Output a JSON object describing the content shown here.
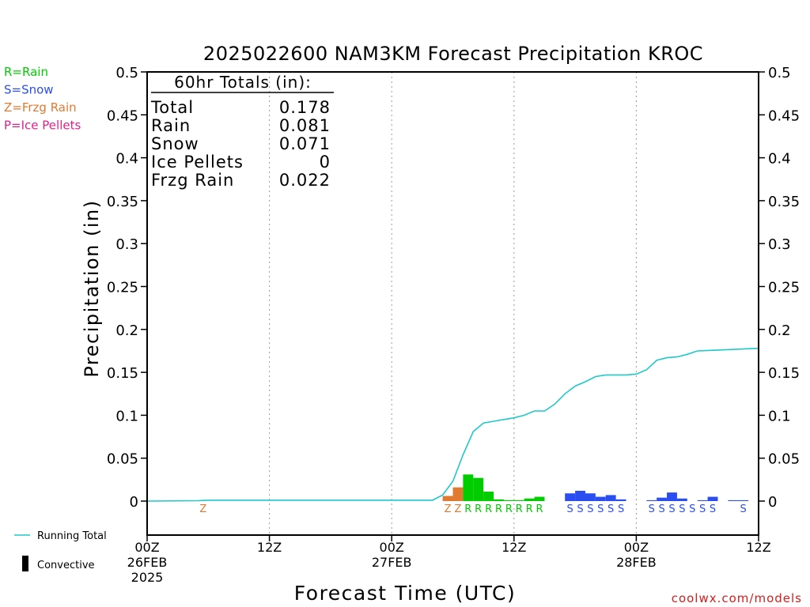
{
  "chart_data": {
    "type": "bar",
    "title": "2025022600 NAM3KM Forecast Precipitation KROC",
    "xlabel": "Forecast Time (UTC)",
    "ylabel": "Precipitation (in)",
    "ylim": [
      -0.04,
      0.5
    ],
    "xlim_hours": [
      0,
      60
    ],
    "yticks": [
      "0",
      "0.05",
      "0.1",
      "0.15",
      "0.2",
      "0.25",
      "0.3",
      "0.35",
      "0.4",
      "0.45",
      "0.5"
    ],
    "yticks_values": [
      0,
      0.05,
      0.1,
      0.15,
      0.2,
      0.25,
      0.3,
      0.35,
      0.4,
      0.45,
      0.5
    ],
    "xticks": [
      {
        "hour": 0,
        "line1": "00Z",
        "line2": "26FEB",
        "line3": "2025"
      },
      {
        "hour": 12,
        "line1": "12Z",
        "line2": "",
        "line3": ""
      },
      {
        "hour": 24,
        "line1": "00Z",
        "line2": "27FEB",
        "line3": ""
      },
      {
        "hour": 36,
        "line1": "12Z",
        "line2": "",
        "line3": ""
      },
      {
        "hour": 48,
        "line1": "00Z",
        "line2": "28FEB",
        "line3": ""
      },
      {
        "hour": 60,
        "line1": "12Z",
        "line2": "",
        "line3": ""
      }
    ],
    "grid_vertical": "dotted",
    "legend": [
      {
        "label": "R=Rain",
        "color": "#00cc00"
      },
      {
        "label": "S=Snow",
        "color": "#2a4ef0"
      },
      {
        "label": "Z=Frzg Rain",
        "color": "#e07a30"
      },
      {
        "label": "P=Ice Pellets",
        "color": "#e0208a"
      }
    ],
    "bottom_legend": [
      {
        "label": "Running Total",
        "color": "#20c8c8"
      },
      {
        "label": "Convective",
        "color": "#000000"
      }
    ],
    "totals_box": {
      "heading": "60hr Totals (in):",
      "rows": [
        {
          "label": "Total",
          "value": "0.178"
        },
        {
          "label": "Rain",
          "value": "0.081"
        },
        {
          "label": "Snow",
          "value": "0.071"
        },
        {
          "label": "Ice Pellets",
          "value": "0"
        },
        {
          "label": "Frzg Rain",
          "value": "0.022"
        }
      ]
    },
    "bars": [
      {
        "hour": 29,
        "value": 0.006,
        "type": "Z"
      },
      {
        "hour": 30,
        "value": 0.016,
        "type": "Z"
      },
      {
        "hour": 31,
        "value": 0.031,
        "type": "R"
      },
      {
        "hour": 32,
        "value": 0.027,
        "type": "R"
      },
      {
        "hour": 33,
        "value": 0.011,
        "type": "R"
      },
      {
        "hour": 34,
        "value": 0.002,
        "type": "R"
      },
      {
        "hour": 35,
        "value": 0.001,
        "type": "R"
      },
      {
        "hour": 36,
        "value": 0.001,
        "type": "R"
      },
      {
        "hour": 37,
        "value": 0.003,
        "type": "R"
      },
      {
        "hour": 38,
        "value": 0.005,
        "type": "R"
      },
      {
        "hour": 41,
        "value": 0.009,
        "type": "S"
      },
      {
        "hour": 42,
        "value": 0.012,
        "type": "S"
      },
      {
        "hour": 43,
        "value": 0.009,
        "type": "S"
      },
      {
        "hour": 44,
        "value": 0.005,
        "type": "S"
      },
      {
        "hour": 45,
        "value": 0.007,
        "type": "S"
      },
      {
        "hour": 46,
        "value": 0.002,
        "type": "S"
      },
      {
        "hour": 49,
        "value": 0.001,
        "type": "S"
      },
      {
        "hour": 50,
        "value": 0.004,
        "type": "S"
      },
      {
        "hour": 51,
        "value": 0.01,
        "type": "S"
      },
      {
        "hour": 52,
        "value": 0.003,
        "type": "S"
      },
      {
        "hour": 54,
        "value": 0.001,
        "type": "S"
      },
      {
        "hour": 55,
        "value": 0.005,
        "type": "S"
      },
      {
        "hour": 57,
        "value": 0.001,
        "type": "S"
      },
      {
        "hour": 58,
        "value": 0.001,
        "type": "S"
      }
    ],
    "ptype_markers": [
      {
        "hour": 5.5,
        "letter": "Z"
      },
      {
        "hour": 29.5,
        "letter": "Z"
      },
      {
        "hour": 30.5,
        "letter": "Z"
      },
      {
        "hour": 31.5,
        "letter": "R"
      },
      {
        "hour": 32.5,
        "letter": "R"
      },
      {
        "hour": 33.5,
        "letter": "R"
      },
      {
        "hour": 34.5,
        "letter": "R"
      },
      {
        "hour": 35.5,
        "letter": "R"
      },
      {
        "hour": 36.5,
        "letter": "R"
      },
      {
        "hour": 37.5,
        "letter": "R"
      },
      {
        "hour": 38.5,
        "letter": "R"
      },
      {
        "hour": 41.5,
        "letter": "S"
      },
      {
        "hour": 42.5,
        "letter": "S"
      },
      {
        "hour": 43.5,
        "letter": "S"
      },
      {
        "hour": 44.5,
        "letter": "S"
      },
      {
        "hour": 45.5,
        "letter": "S"
      },
      {
        "hour": 46.5,
        "letter": "S"
      },
      {
        "hour": 49.5,
        "letter": "S"
      },
      {
        "hour": 50.5,
        "letter": "S"
      },
      {
        "hour": 51.5,
        "letter": "S"
      },
      {
        "hour": 52.5,
        "letter": "S"
      },
      {
        "hour": 53.5,
        "letter": "S"
      },
      {
        "hour": 54.5,
        "letter": "S"
      },
      {
        "hour": 55.5,
        "letter": "S"
      },
      {
        "hour": 58.5,
        "letter": "S"
      }
    ],
    "running_total": [
      [
        0,
        0
      ],
      [
        5,
        0.0005
      ],
      [
        6,
        0.001
      ],
      [
        28,
        0.001
      ],
      [
        29,
        0.007
      ],
      [
        30,
        0.023
      ],
      [
        31,
        0.054
      ],
      [
        32,
        0.081
      ],
      [
        33,
        0.091
      ],
      [
        34,
        0.093
      ],
      [
        35,
        0.095
      ],
      [
        36,
        0.097
      ],
      [
        37,
        0.1
      ],
      [
        38,
        0.105
      ],
      [
        39,
        0.105
      ],
      [
        40,
        0.113
      ],
      [
        41,
        0.125
      ],
      [
        42,
        0.134
      ],
      [
        43,
        0.139
      ],
      [
        44,
        0.145
      ],
      [
        45,
        0.147
      ],
      [
        46,
        0.147
      ],
      [
        47,
        0.147
      ],
      [
        48,
        0.148
      ],
      [
        49,
        0.153
      ],
      [
        50,
        0.164
      ],
      [
        51,
        0.167
      ],
      [
        52,
        0.168
      ],
      [
        53,
        0.171
      ],
      [
        54,
        0.175
      ],
      [
        56,
        0.176
      ],
      [
        58,
        0.177
      ],
      [
        60,
        0.178
      ]
    ],
    "type_colors": {
      "R": "#00cc00",
      "S": "#2a4ef0",
      "Z": "#e07a30",
      "P": "#e0208a"
    }
  },
  "footer": {
    "credit": "coolwx.com/models"
  }
}
